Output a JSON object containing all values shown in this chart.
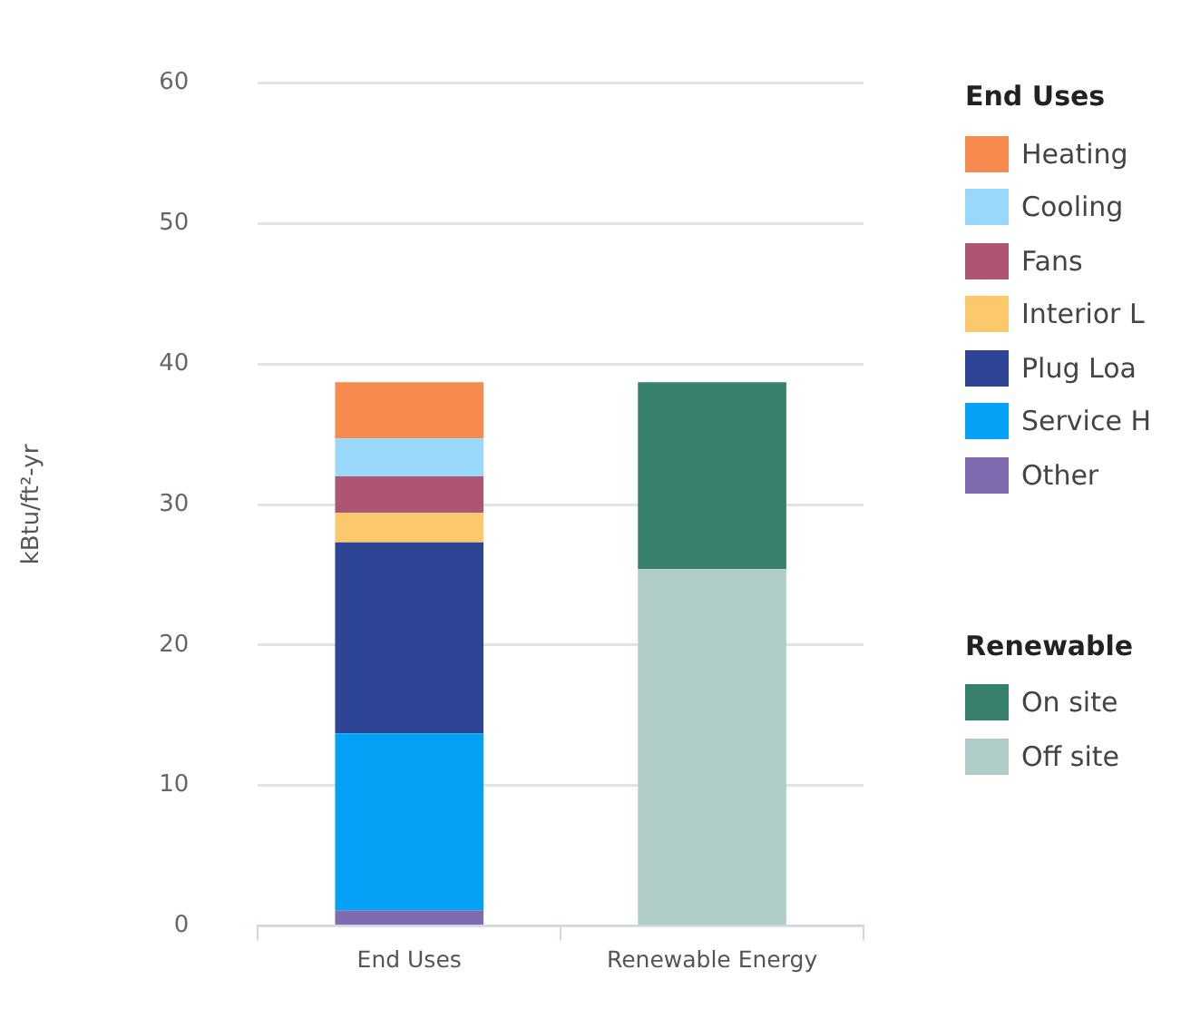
{
  "chart_data": {
    "type": "bar",
    "stacked": true,
    "ylabel": "kBtu/ft²-yr",
    "legend_title": "End Uses",
    "annotations": [
      "Renewable"
    ],
    "categories": [
      "End Uses",
      "Renewable Energy"
    ],
    "series": [
      {
        "name": "Other",
        "color": "#7e6bb0",
        "values": [
          1.1,
          null
        ]
      },
      {
        "name": "Service H",
        "color": "#04a2f7",
        "values": [
          12.6,
          null
        ]
      },
      {
        "name": "Plug Loa",
        "color": "#2e4595",
        "values": [
          13.6,
          null
        ]
      },
      {
        "name": "Interior L",
        "color": "#fbc96c",
        "values": [
          2.1,
          null
        ]
      },
      {
        "name": "Fans",
        "color": "#ad5573",
        "values": [
          2.6,
          null
        ]
      },
      {
        "name": "Cooling",
        "color": "#9ad8fb",
        "values": [
          2.7,
          null
        ]
      },
      {
        "name": "Heating",
        "color": "#f68a4f",
        "values": [
          4.0,
          null
        ]
      },
      {
        "name": "Off site",
        "color": "#b1cdc7",
        "values": [
          null,
          25.4
        ]
      },
      {
        "name": "On site",
        "color": "#36806c",
        "values": [
          null,
          13.3
        ]
      }
    ],
    "ylim": [
      0,
      60
    ],
    "yticks": [
      0,
      10,
      20,
      30,
      40,
      50,
      60
    ],
    "grid": "y",
    "legend": "right"
  }
}
